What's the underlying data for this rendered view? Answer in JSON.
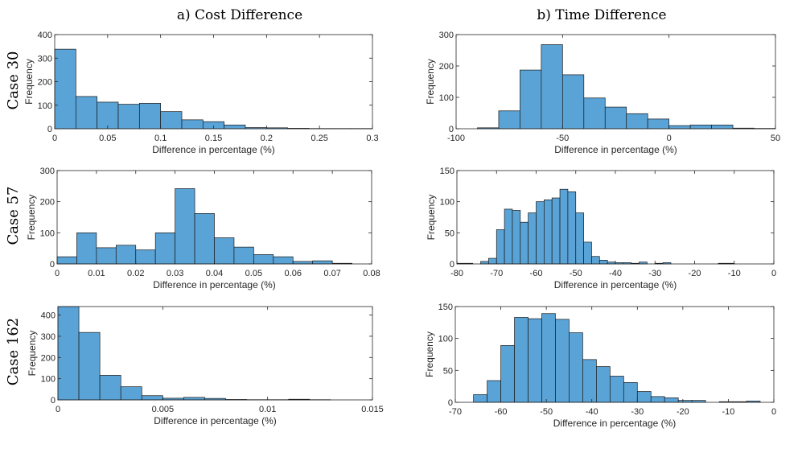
{
  "column_titles": [
    "a) Cost Difference",
    "b) Time Difference"
  ],
  "row_labels": [
    "Case 30",
    "Case 57",
    "Case 162"
  ],
  "bar_color": "#5aa3d6",
  "chart_data": [
    {
      "type": "bar",
      "title": "Case 30 - Cost Difference",
      "xlabel": "Difference in percentage (%)",
      "ylabel": "Frequency",
      "xlim": [
        0,
        0.3
      ],
      "ylim": [
        0,
        400
      ],
      "xticks": [
        0,
        0.05,
        0.1,
        0.15,
        0.2,
        0.25,
        0.3
      ],
      "xtick_labels": [
        "0",
        "0.05",
        "0.1",
        "0.15",
        "0.2",
        "0.25",
        "0.3"
      ],
      "yticks": [
        0,
        100,
        200,
        300,
        400
      ],
      "ytick_labels": [
        "0",
        "100",
        "200",
        "300",
        "400"
      ],
      "bin_edges": [
        0,
        0.02,
        0.04,
        0.06,
        0.08,
        0.1,
        0.12,
        0.14,
        0.16,
        0.18,
        0.2,
        0.22,
        0.24,
        0.26,
        0.28,
        0.3
      ],
      "values": [
        338,
        137,
        113,
        104,
        108,
        73,
        38,
        30,
        16,
        5,
        4,
        2,
        1,
        1,
        1
      ]
    },
    {
      "type": "bar",
      "title": "Case 30 - Time Difference",
      "xlabel": "Difference in percentage (%)",
      "ylabel": "Frequency",
      "xlim": [
        -100,
        50
      ],
      "ylim": [
        0,
        300
      ],
      "xticks": [
        -100,
        -50,
        0,
        50
      ],
      "xtick_labels": [
        "-100",
        "-50",
        "0",
        "50"
      ],
      "yticks": [
        0,
        100,
        200,
        300
      ],
      "ytick_labels": [
        "0",
        "100",
        "200",
        "300"
      ],
      "bin_edges": [
        -90,
        -80,
        -70,
        -60,
        -50,
        -40,
        -30,
        -20,
        -10,
        0,
        10,
        20,
        30,
        40,
        50
      ],
      "values": [
        3,
        57,
        187,
        268,
        172,
        98,
        69,
        48,
        31,
        10,
        12,
        12,
        2,
        1
      ]
    },
    {
      "type": "bar",
      "title": "Case 57 - Cost Difference",
      "xlabel": "Difference in percentage (%)",
      "ylabel": "Frequency",
      "xlim": [
        0,
        0.08
      ],
      "ylim": [
        0,
        300
      ],
      "xticks": [
        0,
        0.01,
        0.02,
        0.03,
        0.04,
        0.05,
        0.06,
        0.07,
        0.08
      ],
      "xtick_labels": [
        "0",
        "0.01",
        "0.02",
        "0.03",
        "0.04",
        "0.05",
        "0.06",
        "0.07",
        "0.08"
      ],
      "yticks": [
        0,
        100,
        200,
        300
      ],
      "ytick_labels": [
        "0",
        "100",
        "200",
        "300"
      ],
      "bin_edges": [
        0,
        0.005,
        0.01,
        0.015,
        0.02,
        0.025,
        0.03,
        0.035,
        0.04,
        0.045,
        0.05,
        0.055,
        0.06,
        0.065,
        0.07,
        0.075
      ],
      "values": [
        23,
        100,
        52,
        60,
        45,
        100,
        242,
        162,
        84,
        54,
        30,
        23,
        8,
        10,
        2
      ]
    },
    {
      "type": "bar",
      "title": "Case 57 - Time Difference",
      "xlabel": "Difference in percentage (%)",
      "ylabel": "Frequency",
      "xlim": [
        -80,
        0
      ],
      "ylim": [
        0,
        150
      ],
      "xticks": [
        -80,
        -70,
        -60,
        -50,
        -40,
        -30,
        -20,
        -10,
        0
      ],
      "xtick_labels": [
        "-80",
        "-70",
        "-60",
        "-50",
        "-40",
        "-30",
        "-20",
        "-10",
        "0"
      ],
      "yticks": [
        0,
        50,
        100,
        150
      ],
      "ytick_labels": [
        "0",
        "50",
        "100",
        "150"
      ],
      "bin_edges": [
        -80,
        -76,
        -74,
        -72,
        -70,
        -68,
        -66,
        -64,
        -62,
        -60,
        -58,
        -56,
        -54,
        -52,
        -50,
        -48,
        -46,
        -44,
        -42,
        -40,
        -38,
        -36,
        -34,
        -32,
        -30,
        -28,
        -26,
        -24,
        -22,
        -20,
        -18,
        -16,
        -14,
        -12,
        -10
      ],
      "values": [
        1,
        0,
        4,
        9,
        55,
        88,
        86,
        67,
        82,
        100,
        103,
        106,
        120,
        116,
        82,
        35,
        12,
        6,
        3,
        2,
        2,
        1,
        3,
        0,
        1,
        2,
        0,
        0,
        0,
        0,
        0,
        0,
        1,
        1
      ]
    },
    {
      "type": "bar",
      "title": "Case 162 - Cost Difference",
      "xlabel": "Difference in percentage (%)",
      "ylabel": "Frequency",
      "xlim": [
        0,
        0.015
      ],
      "ylim": [
        0,
        440
      ],
      "xticks": [
        0,
        0.005,
        0.01,
        0.015
      ],
      "xtick_labels": [
        "0",
        "0.005",
        "0.01",
        "0.015"
      ],
      "yticks": [
        0,
        100,
        200,
        300,
        400
      ],
      "ytick_labels": [
        "0",
        "100",
        "200",
        "300",
        "400"
      ],
      "bin_edges": [
        0,
        0.001,
        0.002,
        0.003,
        0.004,
        0.005,
        0.006,
        0.007,
        0.008,
        0.009,
        0.01,
        0.011,
        0.012,
        0.013,
        0.014
      ],
      "values": [
        440,
        318,
        116,
        62,
        20,
        8,
        12,
        7,
        2,
        1,
        1,
        3,
        1,
        0
      ]
    },
    {
      "type": "bar",
      "title": "Case 162 - Time Difference",
      "xlabel": "Difference in percentage (%)",
      "ylabel": "Frequency",
      "xlim": [
        -70,
        0
      ],
      "ylim": [
        0,
        150
      ],
      "xticks": [
        -70,
        -60,
        -50,
        -40,
        -30,
        -20,
        -10,
        0
      ],
      "xtick_labels": [
        "-70",
        "-60",
        "-50",
        "-40",
        "-30",
        "-20",
        "-10",
        "0"
      ],
      "yticks": [
        0,
        50,
        100,
        150
      ],
      "ytick_labels": [
        "0",
        "50",
        "100",
        "150"
      ],
      "bin_edges": [
        -66,
        -63,
        -60,
        -57,
        -54,
        -51,
        -48,
        -45,
        -42,
        -39,
        -36,
        -33,
        -30,
        -27,
        -24,
        -21,
        -18,
        -15,
        -12,
        -9,
        -6,
        -3
      ],
      "values": [
        12,
        34,
        89,
        133,
        131,
        139,
        130,
        109,
        67,
        56,
        41,
        31,
        17,
        9,
        7,
        3,
        3,
        0,
        1,
        1,
        2
      ]
    }
  ]
}
